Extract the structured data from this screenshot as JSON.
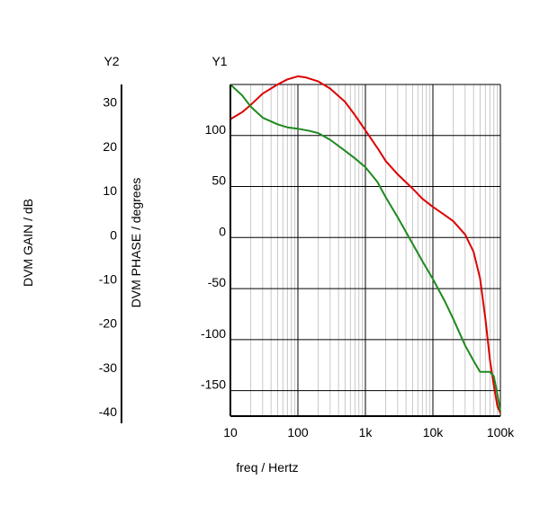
{
  "chart_data": {
    "type": "line",
    "x_scale": "log",
    "xlim": [
      10,
      100000
    ],
    "xlabel": "freq / Hertz",
    "x_ticks": [
      {
        "value": 10,
        "label": "10"
      },
      {
        "value": 100,
        "label": "100"
      },
      {
        "value": 1000,
        "label": "1k"
      },
      {
        "value": 10000,
        "label": "10k"
      },
      {
        "value": 100000,
        "label": "100k"
      }
    ],
    "axes": {
      "y1": {
        "title": "Y1",
        "label": "DVM PHASE / degrees",
        "ylim": [
          -175,
          150
        ],
        "ticks": [
          {
            "value": 100,
            "label": "100"
          },
          {
            "value": 50,
            "label": "50"
          },
          {
            "value": 0,
            "label": "0"
          },
          {
            "value": -50,
            "label": "-50"
          },
          {
            "value": -100,
            "label": "-100"
          },
          {
            "value": -150,
            "label": "-150"
          }
        ]
      },
      "y2": {
        "title": "Y2",
        "label": "DVM GAIN / dB",
        "ylim": [
          -41,
          34
        ],
        "ticks": [
          {
            "value": 30,
            "label": "30"
          },
          {
            "value": 20,
            "label": "20"
          },
          {
            "value": 10,
            "label": "10"
          },
          {
            "value": 0,
            "label": "0"
          },
          {
            "value": -10,
            "label": "-10"
          },
          {
            "value": -20,
            "label": "-20"
          },
          {
            "value": -30,
            "label": "-30"
          },
          {
            "value": -40,
            "label": "-40"
          }
        ]
      }
    },
    "grid": true,
    "series": [
      {
        "color": "#dd0000",
        "axis": "y1",
        "points": [
          [
            10,
            116
          ],
          [
            15,
            123
          ],
          [
            20,
            130
          ],
          [
            30,
            141
          ],
          [
            50,
            150
          ],
          [
            70,
            155
          ],
          [
            100,
            158
          ],
          [
            130,
            157
          ],
          [
            200,
            153
          ],
          [
            300,
            146
          ],
          [
            500,
            133
          ],
          [
            700,
            120
          ],
          [
            1000,
            105
          ],
          [
            1500,
            88
          ],
          [
            2000,
            75
          ],
          [
            3000,
            62
          ],
          [
            5000,
            48
          ],
          [
            7000,
            38
          ],
          [
            10000,
            30
          ],
          [
            15000,
            22
          ],
          [
            20000,
            16
          ],
          [
            30000,
            3
          ],
          [
            40000,
            -14
          ],
          [
            50000,
            -40
          ],
          [
            60000,
            -80
          ],
          [
            70000,
            -120
          ],
          [
            80000,
            -145
          ],
          [
            90000,
            -165
          ],
          [
            100000,
            -172
          ]
        ]
      },
      {
        "color": "#1e8a1e",
        "axis": "y2",
        "points": [
          [
            10,
            34
          ],
          [
            15,
            31.5
          ],
          [
            20,
            29
          ],
          [
            30,
            26.5
          ],
          [
            50,
            25
          ],
          [
            70,
            24.3
          ],
          [
            100,
            24
          ],
          [
            150,
            23.5
          ],
          [
            200,
            23
          ],
          [
            300,
            21.5
          ],
          [
            500,
            19
          ],
          [
            700,
            17.3
          ],
          [
            1000,
            15.3
          ],
          [
            1500,
            12
          ],
          [
            2000,
            8.5
          ],
          [
            3000,
            4
          ],
          [
            5000,
            -2
          ],
          [
            7000,
            -6
          ],
          [
            10000,
            -10
          ],
          [
            15000,
            -15
          ],
          [
            20000,
            -19
          ],
          [
            30000,
            -25
          ],
          [
            40000,
            -28.5
          ],
          [
            50000,
            -31
          ],
          [
            60000,
            -31
          ],
          [
            70000,
            -31
          ],
          [
            80000,
            -32
          ],
          [
            90000,
            -36
          ],
          [
            100000,
            -40
          ]
        ]
      }
    ]
  }
}
